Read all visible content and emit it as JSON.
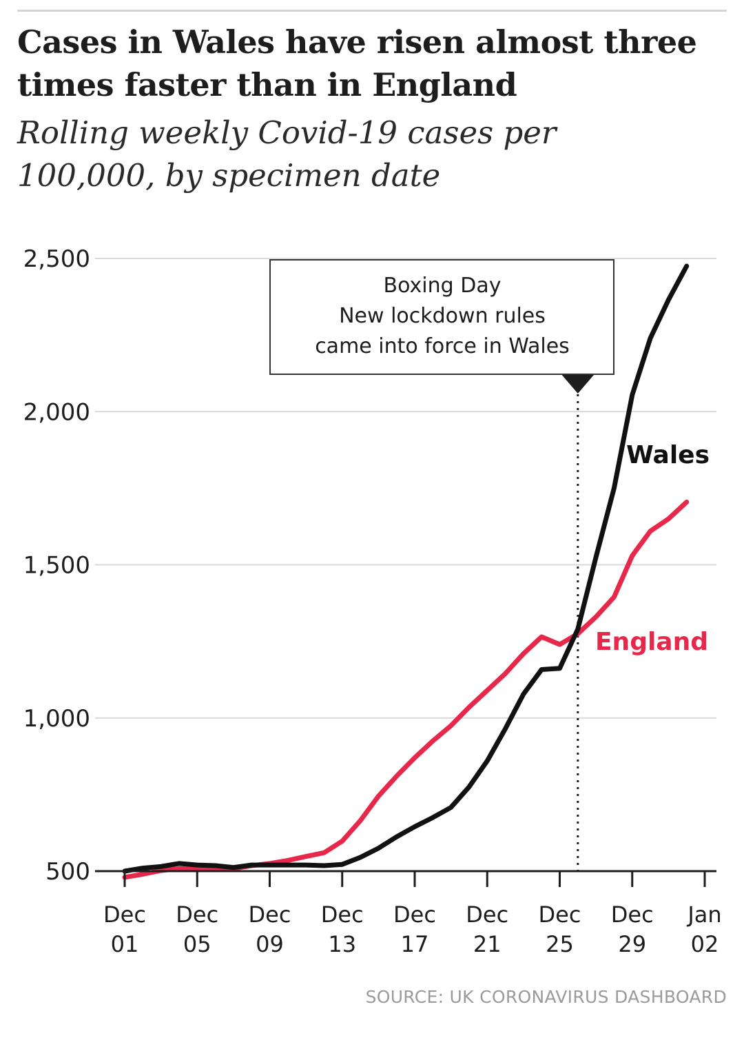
{
  "header": {
    "title": "Cases in Wales have risen almost three times faster than in England",
    "subtitle": "Rolling weekly Covid-19 cases per 100,000, by specimen date"
  },
  "footer": {
    "source": "SOURCE: UK CORONAVIRUS DASHBOARD"
  },
  "chart_data": {
    "type": "line",
    "title": "Cases in Wales have risen almost three times faster than in England",
    "subtitle": "Rolling weekly Covid-19 cases per 100,000, by specimen date",
    "xlabel": "",
    "ylabel": "",
    "ylim": [
      500,
      2500
    ],
    "yticks": [
      {
        "value": 500,
        "label": "500"
      },
      {
        "value": 1000,
        "label": "1,000"
      },
      {
        "value": 1500,
        "label": "1,500"
      },
      {
        "value": 2000,
        "label": "2,000"
      },
      {
        "value": 2500,
        "label": "2,500"
      }
    ],
    "xticks": [
      {
        "date": "2020-12-01",
        "line1": "Dec",
        "line2": "01"
      },
      {
        "date": "2020-12-05",
        "line1": "Dec",
        "line2": "05"
      },
      {
        "date": "2020-12-09",
        "line1": "Dec",
        "line2": "09"
      },
      {
        "date": "2020-12-13",
        "line1": "Dec",
        "line2": "13"
      },
      {
        "date": "2020-12-17",
        "line1": "Dec",
        "line2": "17"
      },
      {
        "date": "2020-12-21",
        "line1": "Dec",
        "line2": "21"
      },
      {
        "date": "2020-12-25",
        "line1": "Dec",
        "line2": "25"
      },
      {
        "date": "2020-12-29",
        "line1": "Dec",
        "line2": "29"
      },
      {
        "date": "2021-01-02",
        "line1": "Jan",
        "line2": "02"
      }
    ],
    "x": [
      "2020-12-01",
      "2020-12-02",
      "2020-12-03",
      "2020-12-04",
      "2020-12-05",
      "2020-12-06",
      "2020-12-07",
      "2020-12-08",
      "2020-12-09",
      "2020-12-10",
      "2020-12-11",
      "2020-12-12",
      "2020-12-13",
      "2020-12-14",
      "2020-12-15",
      "2020-12-16",
      "2020-12-17",
      "2020-12-18",
      "2020-12-19",
      "2020-12-20",
      "2020-12-21",
      "2020-12-22",
      "2020-12-23",
      "2020-12-24",
      "2020-12-25",
      "2020-12-26",
      "2020-12-27",
      "2020-12-28",
      "2020-12-29",
      "2020-12-30",
      "2020-12-31",
      "2021-01-01"
    ],
    "series": [
      {
        "name": "Wales",
        "color": "#111111",
        "values": [
          500,
          510,
          515,
          525,
          520,
          518,
          512,
          520,
          520,
          520,
          520,
          518,
          522,
          545,
          575,
          612,
          645,
          675,
          708,
          775,
          860,
          965,
          1078,
          1158,
          1162,
          1290,
          1525,
          1750,
          2055,
          2240,
          2365,
          2475
        ]
      },
      {
        "name": "England",
        "color": "#e8284a",
        "values": [
          480,
          490,
          502,
          508,
          506,
          507,
          508,
          518,
          525,
          535,
          548,
          560,
          598,
          665,
          745,
          810,
          870,
          925,
          975,
          1035,
          1090,
          1145,
          1210,
          1265,
          1240,
          1275,
          1330,
          1395,
          1530,
          1610,
          1650,
          1705
        ]
      }
    ],
    "grid": true,
    "legend": "labels at end of lines",
    "annotation": {
      "date": "2020-12-26",
      "lines": [
        "Boxing Day",
        "New lockdown rules",
        "came into force in Wales"
      ],
      "style": "dotted vertical line with pointer"
    }
  }
}
